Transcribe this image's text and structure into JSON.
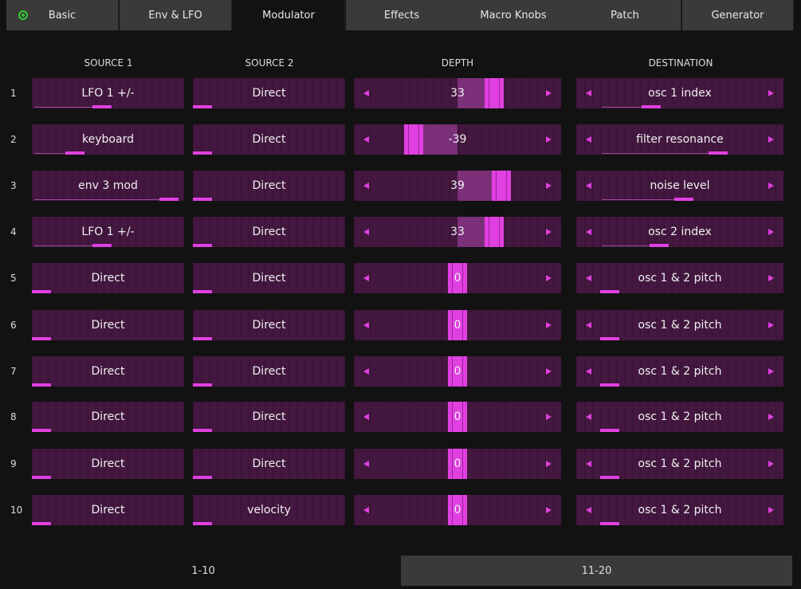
{
  "tabs": [
    "Basic",
    "Env & LFO",
    "Modulator",
    "Effects",
    "Macro Knobs",
    "Patch",
    "Generator"
  ],
  "headers": [
    "SOURCE 1",
    "SOURCE 2",
    "DEPTH",
    "DESTINATION"
  ],
  "rows": [
    {
      "index": 1,
      "source1": "LFO 1 +/-",
      "source2": "Direct",
      "depth": 33,
      "destination": "osc 1 index"
    },
    {
      "index": 2,
      "source1": "keyboard",
      "source2": "Direct",
      "depth": -39,
      "destination": "filter resonance"
    },
    {
      "index": 3,
      "source1": "env 3 mod",
      "source2": "Direct",
      "depth": 39,
      "destination": "noise level"
    },
    {
      "index": 4,
      "source1": "LFO 1 +/-",
      "source2": "Direct",
      "depth": 33,
      "destination": "osc 2 index"
    },
    {
      "index": 5,
      "source1": "Direct",
      "source2": "Direct",
      "depth": 0,
      "destination": "osc 1 & 2 pitch"
    },
    {
      "index": 6,
      "source1": "Direct",
      "source2": "Direct",
      "depth": 0,
      "destination": "osc 1 & 2 pitch"
    },
    {
      "index": 7,
      "source1": "Direct",
      "source2": "Direct",
      "depth": 0,
      "destination": "osc 1 & 2 pitch"
    },
    {
      "index": 8,
      "source1": "Direct",
      "source2": "Direct",
      "depth": 0,
      "destination": "osc 1 & 2 pitch"
    },
    {
      "index": 9,
      "source1": "Direct",
      "source2": "Direct",
      "depth": 0,
      "destination": "osc 1 & 2 pitch"
    },
    {
      "index": 10,
      "source1": "Direct",
      "source2": "velocity",
      "depth": 0,
      "destination": "osc 1 & 2 pitch"
    }
  ],
  "pages": [
    "1-10",
    "11-20"
  ]
}
